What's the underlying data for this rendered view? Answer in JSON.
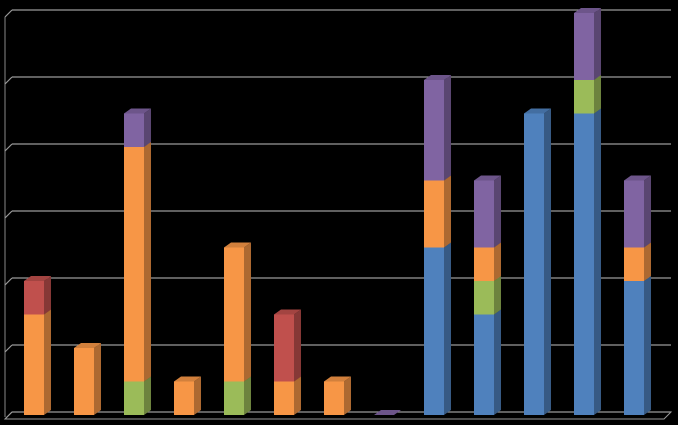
{
  "chart_data": {
    "type": "bar3d-stacked",
    "categories": [
      null,
      null,
      null,
      null,
      null,
      null,
      null,
      null,
      null,
      null,
      null,
      null,
      null
    ],
    "series": [
      {
        "color": "#4f81bd",
        "values": [
          0,
          0,
          0,
          0,
          0,
          0,
          0,
          0,
          2.5,
          1.5,
          4.5,
          4.5,
          2
        ]
      },
      {
        "color": "#9bbb59",
        "values": [
          0,
          0,
          0.5,
          0,
          0.5,
          0,
          0,
          0,
          0,
          0.5,
          0,
          0.5,
          0
        ]
      },
      {
        "color": "#f79646",
        "values": [
          1.5,
          1,
          3.5,
          0.5,
          2,
          0.5,
          0.5,
          0,
          1,
          0.5,
          0,
          0,
          0.5
        ]
      },
      {
        "color": "#c0504d",
        "values": [
          0.5,
          0,
          0,
          0,
          0,
          1,
          0,
          0,
          0,
          0,
          0,
          0,
          0
        ]
      },
      {
        "color": "#8064a2",
        "values": [
          0,
          0,
          0.5,
          0,
          0,
          0,
          0,
          0,
          1.5,
          1,
          0,
          1,
          1
        ]
      }
    ],
    "ylim": [
      0,
      6
    ],
    "yticks": [
      0,
      1,
      2,
      3,
      4,
      5,
      6
    ],
    "grid": true
  }
}
